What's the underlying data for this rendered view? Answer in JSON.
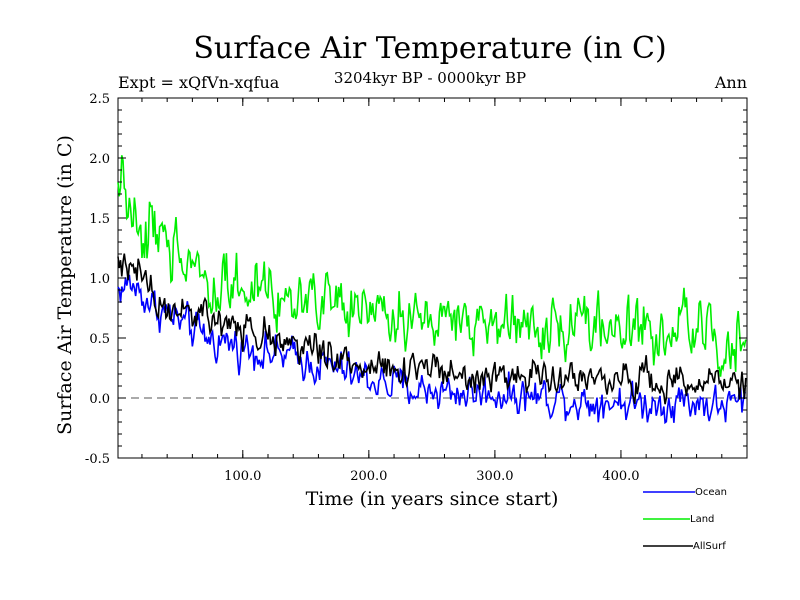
{
  "chart_data": {
    "type": "line",
    "title": "Surface Air Temperature (in C)",
    "subtitle": "3204kyr BP - 0000kyr BP",
    "experiment_label": "Expt = xQfVn-xqfua",
    "season_label": "Ann",
    "xlabel": "Time (in years since start)",
    "ylabel": "Surface Air Temperature (in C)",
    "xlim": [
      1,
      500
    ],
    "ylim": [
      -0.5,
      2.5
    ],
    "xticks": [
      100,
      200,
      300,
      400
    ],
    "xtick_labels": [
      "100.0",
      "200.0",
      "300.0",
      "400.0"
    ],
    "yticks": [
      -0.5,
      0.0,
      0.5,
      1.0,
      1.5,
      2.0,
      2.5
    ],
    "ytick_labels": [
      "-0.5",
      "0.0",
      "0.5",
      "1.0",
      "1.5",
      "2.0",
      "2.5"
    ],
    "reference_line": 0.0,
    "legend_position": "bottom-right, below plot",
    "series": [
      {
        "name": "Ocean",
        "color": "#0000ff",
        "values": [
          0.9,
          0.95,
          0.85,
          0.75,
          0.7,
          0.62,
          0.55,
          0.5,
          0.47,
          0.45,
          0.42,
          0.4,
          0.37,
          0.35,
          0.32,
          0.3,
          0.27,
          0.25,
          0.2,
          0.17,
          0.15,
          0.12,
          0.1,
          0.08,
          0.07,
          0.06,
          0.05,
          0.05,
          0.04,
          0.04,
          0.04,
          0.03,
          0.02,
          0.02,
          0.01,
          0.0,
          -0.02,
          -0.03,
          -0.02,
          -0.02,
          -0.04,
          -0.05,
          -0.05,
          -0.03,
          -0.02,
          -0.03,
          -0.05,
          -0.08,
          -0.05,
          -0.02
        ]
      },
      {
        "name": "Land",
        "color": "#00ee00",
        "values": [
          1.75,
          1.6,
          1.4,
          1.3,
          1.25,
          1.2,
          1.15,
          1.05,
          1.0,
          0.95,
          0.92,
          0.9,
          0.88,
          0.85,
          0.82,
          0.8,
          0.77,
          0.75,
          0.73,
          0.72,
          0.7,
          0.68,
          0.67,
          0.66,
          0.65,
          0.65,
          0.64,
          0.64,
          0.63,
          0.63,
          0.62,
          0.62,
          0.61,
          0.6,
          0.6,
          0.62,
          0.63,
          0.6,
          0.58,
          0.57,
          0.56,
          0.55,
          0.54,
          0.55,
          0.57,
          0.58,
          0.55,
          0.52,
          0.5,
          0.48
        ]
      },
      {
        "name": "AllSurf",
        "color": "#000000",
        "values": [
          1.15,
          1.1,
          1.0,
          0.85,
          0.8,
          0.75,
          0.7,
          0.65,
          0.62,
          0.6,
          0.56,
          0.53,
          0.5,
          0.46,
          0.43,
          0.4,
          0.38,
          0.35,
          0.32,
          0.3,
          0.28,
          0.27,
          0.25,
          0.24,
          0.23,
          0.22,
          0.21,
          0.2,
          0.2,
          0.19,
          0.19,
          0.18,
          0.17,
          0.17,
          0.16,
          0.17,
          0.18,
          0.16,
          0.15,
          0.14,
          0.13,
          0.13,
          0.12,
          0.13,
          0.14,
          0.14,
          0.12,
          0.1,
          0.09,
          0.08
        ]
      }
    ]
  }
}
